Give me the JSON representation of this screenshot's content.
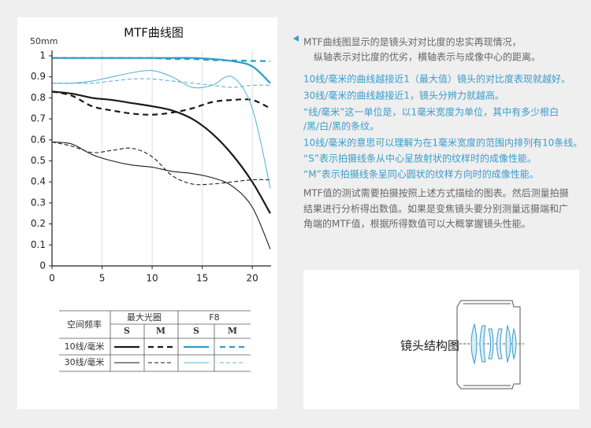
{
  "chart_data": {
    "type": "line",
    "title": "MTF曲线图",
    "focal_length_label": "50mm",
    "x": [
      0,
      2,
      4,
      6,
      8,
      10,
      12,
      14,
      16,
      18,
      20,
      21.8
    ],
    "series": [
      {
        "color": "#1a1a1a",
        "dashed": false,
        "width": 2.2,
        "values": [
          0.83,
          0.82,
          0.8,
          0.79,
          0.775,
          0.76,
          0.74,
          0.7,
          0.63,
          0.53,
          0.4,
          0.25
        ]
      },
      {
        "color": "#1a1a1a",
        "dashed": true,
        "width": 2.2,
        "values": [
          0.83,
          0.81,
          0.76,
          0.74,
          0.725,
          0.72,
          0.73,
          0.75,
          0.78,
          0.79,
          0.79,
          0.75
        ]
      },
      {
        "color": "#2f9bc9",
        "dashed": false,
        "width": 2.2,
        "values": [
          0.99,
          0.99,
          0.99,
          0.99,
          0.99,
          0.99,
          0.99,
          0.99,
          0.985,
          0.975,
          0.95,
          0.87
        ]
      },
      {
        "color": "#2f9bc9",
        "dashed": true,
        "width": 2.2,
        "values": [
          0.99,
          0.99,
          0.99,
          0.99,
          0.99,
          0.99,
          0.985,
          0.985,
          0.98,
          0.978,
          0.976,
          0.975
        ]
      },
      {
        "color": "#1a1a1a",
        "dashed": false,
        "width": 1.1,
        "values": [
          0.59,
          0.58,
          0.53,
          0.5,
          0.48,
          0.47,
          0.45,
          0.44,
          0.42,
          0.38,
          0.28,
          0.08
        ]
      },
      {
        "color": "#1a1a1a",
        "dashed": true,
        "width": 1.1,
        "values": [
          0.59,
          0.57,
          0.54,
          0.55,
          0.56,
          0.52,
          0.43,
          0.39,
          0.39,
          0.4,
          0.41,
          0.41
        ]
      },
      {
        "color": "#5ab4da",
        "dashed": false,
        "width": 1.1,
        "values": [
          0.87,
          0.87,
          0.88,
          0.9,
          0.92,
          0.93,
          0.9,
          0.85,
          0.86,
          0.9,
          0.75,
          0.37
        ]
      },
      {
        "color": "#5ab4da",
        "dashed": true,
        "width": 1.1,
        "values": [
          0.87,
          0.87,
          0.87,
          0.88,
          0.89,
          0.89,
          0.88,
          0.87,
          0.86,
          0.85,
          0.86,
          0.86
        ]
      }
    ],
    "xlim": [
      0,
      21.8
    ],
    "ylim": [
      0,
      1
    ],
    "xticks": [
      0,
      5,
      10,
      15,
      20
    ],
    "yticks": [
      0,
      0.1,
      0.2,
      0.3,
      0.4,
      0.5,
      0.6,
      0.7,
      0.8,
      0.9,
      1
    ],
    "grid": true
  },
  "legend_table": {
    "header": "空间频率",
    "groups": [
      "最大光圈",
      "F8"
    ],
    "columns": [
      "S",
      "M",
      "S",
      "M"
    ],
    "rows": [
      "10线/毫米",
      "30线/毫米"
    ]
  },
  "description": {
    "intro": [
      "MTF曲线图显示的是镜头对对比度的忠实再现情况，",
      "纵轴表示对比度的优劣，横轴表示与成像中心的距离。"
    ],
    "notes": [
      "10线/毫米的曲线越接近1（最大值）镜头的对比度表现就越好。",
      "30线/毫米的曲线越接近1，镜头分辨力就越高。",
      "“线/毫米”这一单位是，以1毫米宽度为单位，其中有多少根白",
      "/黑/白/黑的条纹。",
      "10线/毫米的意思可以理解为在1毫米宽度的范围内排列有10条线。",
      "“S”表示拍摄线条从中心呈放射状的纹样时的成像性能。",
      "“M”表示拍摄线条呈同心圆状的纹样方向时的成像性能。"
    ],
    "footer": [
      "MTF值的测试需要拍摄按照上述方式描绘的图表。然后测量拍摄",
      "结果进行分析得出数值。如果是变焦镜头要分别测量远摄端和广",
      "角端的MTF值，根据所得数值可以大概掌握镜头性能。"
    ]
  },
  "lens_panel": {
    "title": "镜头结构图"
  }
}
